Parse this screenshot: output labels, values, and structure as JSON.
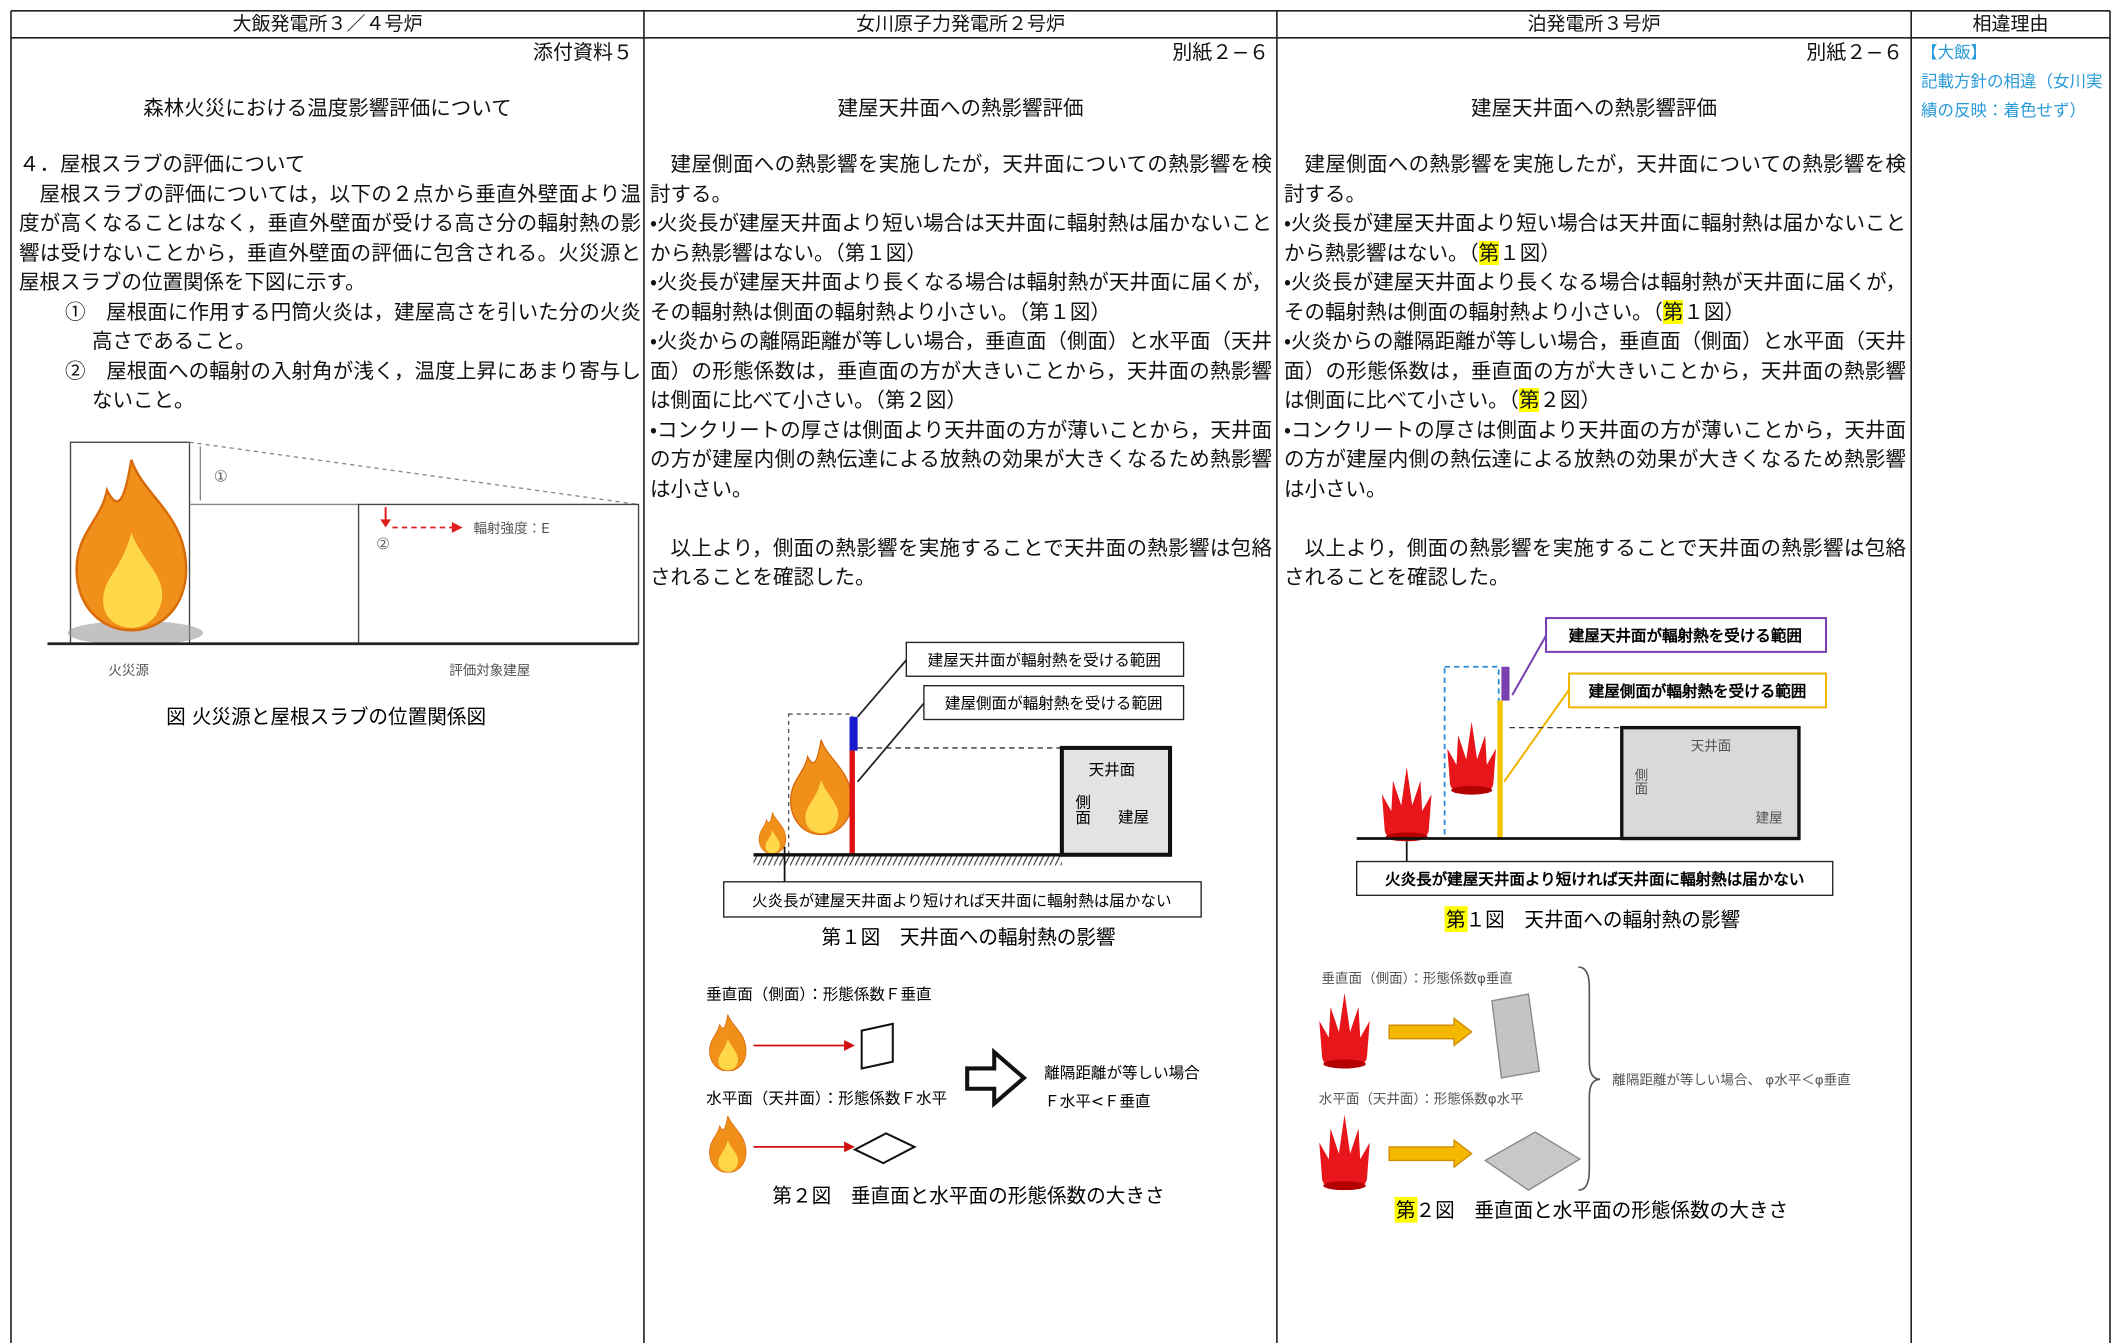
{
  "header": [
    "大飯発電所３／４号炉",
    "女川原子力発電所２号炉",
    "泊発電所３号炉",
    "相違理由"
  ],
  "ohi": {
    "ref": "添付資料５",
    "title": "森林火災における温度影響評価について",
    "heading": "４．屋根スラブの評価について",
    "body": "屋根スラブの評価については，以下の２点から垂直外壁面より温度が高くなることはなく，垂直外壁面が受ける高さ分の輻射熱の影響は受けないことから，垂直外壁面の評価に包含される。火災源と屋根スラブの位置関係を下図に示す。",
    "items": [
      "①　屋根面に作用する円筒火炎は，建屋高さを引いた分の火炎高さであること。",
      "②　屋根面への輻射の入射角が浅く，温度上昇にあまり寄与しないこと。"
    ],
    "figure": {
      "marker_1": "①",
      "marker_2": "②",
      "intensity": "輻射強度：E",
      "source": "火災源",
      "building": "評価対象建屋",
      "caption": "図 火災源と屋根スラブの位置関係図"
    }
  },
  "onagawa": {
    "ref": "別紙２−６",
    "title": "建屋天井面への熱影響評価",
    "body": [
      "建屋側面への熱影響を実施したが，天井面についての熱影響を検討する。",
      "・火炎長が建屋天井面より短い場合は天井面に輻射熱は届かないことから熱影響はない。（第１図）",
      "・火炎長が建屋天井面より長くなる場合は輻射熱が天井面に届くが，その輻射熱は側面の輻射熱より小さい。（第１図）",
      "・火炎からの離隔距離が等しい場合，垂直面（側面）と水平面（天井面）の形態係数は，垂直面の方が大きいことから，天井面の熱影響は側面に比べて小さい。（第２図）",
      "・コンクリートの厚さは側面より天井面の方が薄いことから，天井面の方が建屋内側の熱伝達による放熱の効果が大きくなるため熱影響は小さい。",
      "以上より，側面の熱影響を実施することで天井面の熱影響は包絡されることを確認した。"
    ],
    "figure1": {
      "roof_range": "建屋天井面が輻射熱を受ける範囲",
      "side_range": "建屋側面が輻射熱を受ける範囲",
      "ceiling": "天井面",
      "side": "側面",
      "building": "建屋",
      "note": "火炎長が建屋天井面より短ければ天井面に輻射熱は届かない",
      "caption": "第１図　天井面への輻射熱の影響"
    },
    "figure2": {
      "vertical": "垂直面（側面）：形態係数Ｆ垂直",
      "horizontal": "水平面（天井面）：形態係数Ｆ水平",
      "condition": "離隔距離が等しい場合",
      "relation": "Ｆ水平<Ｆ垂直",
      "caption": "第２図　垂直面と水平面の形態係数の大きさ"
    }
  },
  "tomari": {
    "ref": "別紙２−６",
    "title": "建屋天井面への熱影響評価",
    "body": [
      [
        "建屋側面への熱影響を実施したが，天井面についての熱影響を検討する。"
      ],
      [
        "・火炎長が建屋天井面より短い場合は天井面に輻射熱は届かないことから熱影響はない。（",
        "第",
        "１図）"
      ],
      [
        "・火炎長が建屋天井面より長くなる場合は輻射熱が天井面に届くが，その輻射熱は側面の輻射熱より小さい。（",
        "第",
        "１図）"
      ],
      [
        "・火炎からの離隔距離が等しい場合，垂直面（側面）と水平面（天井面）の形態係数は，垂直面の方が大きいことから，天井面の熱影響は側面に比べて小さい。（",
        "第",
        "２図）"
      ],
      [
        "・コンクリートの厚さは側面より天井面の方が薄いことから，天井面の方が建屋内側の熱伝達による放熱の効果が大きくなるため熱影響は小さい。"
      ],
      [
        "以上より，側面の熱影響を実施することで天井面の熱影響は包絡されることを確認した。"
      ]
    ],
    "figure1": {
      "roof_range": "建屋天井面が輻射熱を受ける範囲",
      "side_range": "建屋側面が輻射熱を受ける範囲",
      "ceiling": "天井面",
      "side": "側面",
      "building": "建屋",
      "note": "火炎長が建屋天井面より短ければ天井面に輻射熱は届かない",
      "caption": [
        "第",
        "１図　天井面への輻射熱の影響"
      ]
    },
    "figure2": {
      "vertical": "垂直面（側面）：形態係数φ垂直",
      "horizontal": "水平面（天井面）：形態係数φ水平",
      "condition": "離隔距離が等しい場合、 φ水平＜φ垂直",
      "caption": [
        "第",
        "２図　垂直面と水平面の形態係数の大きさ"
      ]
    }
  },
  "reason": {
    "tag": "【大飯】",
    "text": "記載方針の相違（女川実績の反映：着色せず）"
  }
}
